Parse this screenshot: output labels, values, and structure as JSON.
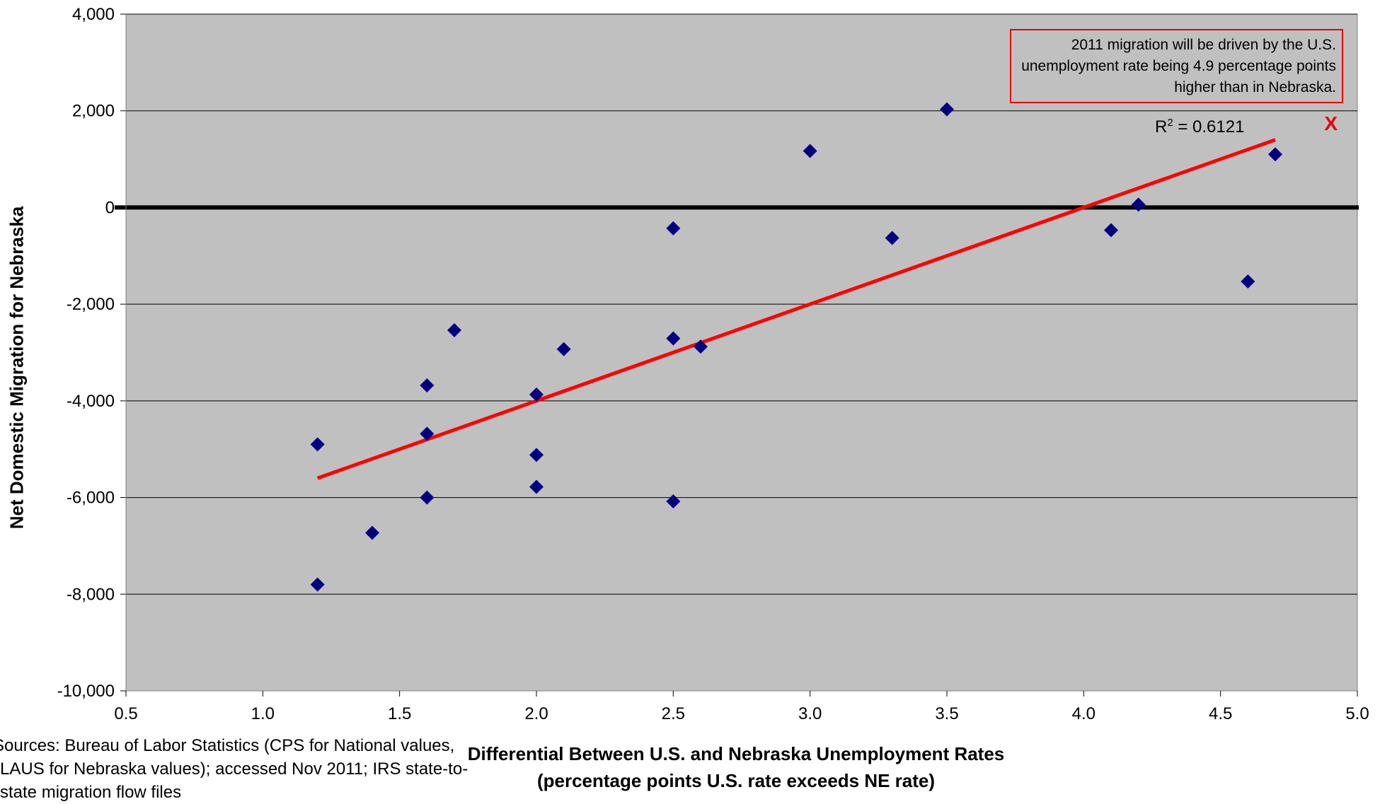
{
  "chart_data": {
    "type": "scatter",
    "title": "",
    "xlabel_line1": "Differential Between U.S. and Nebraska Unemployment Rates",
    "xlabel_line2": "(percentage points U.S. rate exceeds NE rate)",
    "ylabel": "Net Domestic Migration for Nebraska",
    "xlim": [
      0.5,
      5.0
    ],
    "ylim": [
      -10000,
      4000
    ],
    "x_ticks": [
      "0.5",
      "1.0",
      "1.5",
      "2.0",
      "2.5",
      "3.0",
      "3.5",
      "4.0",
      "4.5",
      "5.0"
    ],
    "y_ticks": [
      "4,000",
      "2,000",
      "0",
      "-2,000",
      "-4,000",
      "-6,000",
      "-8,000",
      "-10,000"
    ],
    "grid": "horizontal",
    "background_color": "#c0c0c0",
    "marker_color": "#000080",
    "trendline_color": "#ff0000",
    "series": [
      {
        "points": [
          [
            1.2,
            -4900
          ],
          [
            1.2,
            -7800
          ],
          [
            1.4,
            -6730
          ],
          [
            1.6,
            -3680
          ],
          [
            1.6,
            -4680
          ],
          [
            1.6,
            -6000
          ],
          [
            1.7,
            -2540
          ],
          [
            2.0,
            -3870
          ],
          [
            2.0,
            -5120
          ],
          [
            2.0,
            -5780
          ],
          [
            2.1,
            -2930
          ],
          [
            2.5,
            -430
          ],
          [
            2.5,
            -2710
          ],
          [
            2.5,
            -6080
          ],
          [
            2.6,
            -2880
          ],
          [
            3.0,
            1170
          ],
          [
            3.3,
            -630
          ],
          [
            3.5,
            2030
          ],
          [
            4.1,
            -470
          ],
          [
            4.2,
            60
          ],
          [
            4.6,
            -1530
          ],
          [
            4.7,
            1100
          ]
        ]
      }
    ],
    "trendline": {
      "x": [
        1.2,
        4.7
      ],
      "y": [
        -5600,
        1400
      ]
    },
    "r_squared_label": "R",
    "r_squared_sup": "2",
    "r_squared_value": " = 0.6121",
    "marker_2011": {
      "x": 4.9,
      "y": 1700,
      "label": "X"
    },
    "annotation": "2011 migration will be driven by the U.S. unemployment rate being 4.9 percentage points higher than in Nebraska.",
    "source_note": "Sources: Bureau of Labor Statistics (CPS for National values, LAUS for Nebraska values); accessed Nov 2011; IRS state-to-state migration flow files"
  }
}
